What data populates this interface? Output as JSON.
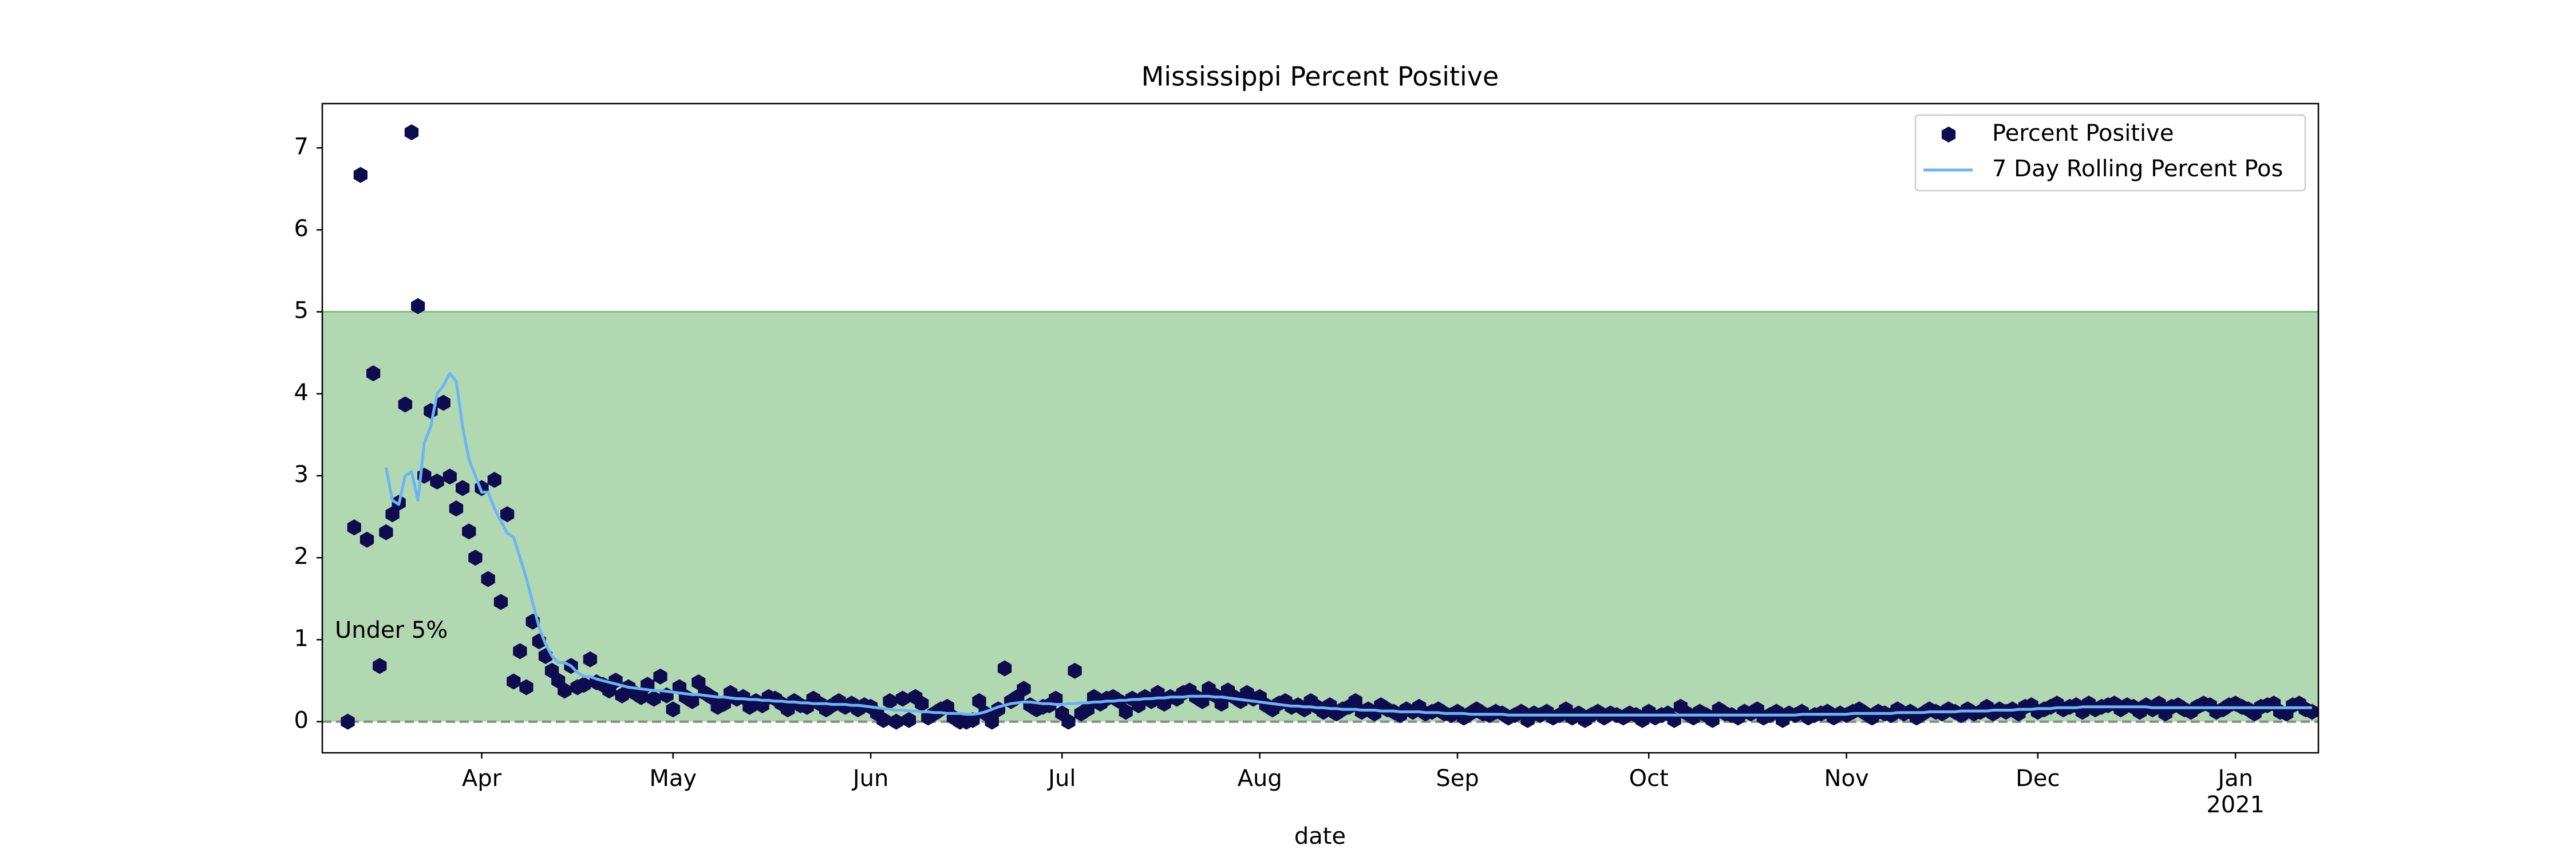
{
  "chart_data": {
    "type": "line",
    "title": "Mississippi Percent Positive",
    "x_label": "date",
    "threshold": 5,
    "threshold_label": "Under 5%",
    "threshold_color": "#b2d8b2",
    "zero_line": true,
    "legend": "upper right",
    "xlim": [
      66,
      379
    ],
    "ylim": [
      -0.38,
      7.54
    ],
    "yticks": [
      0,
      1,
      2,
      3,
      4,
      5,
      6,
      7
    ],
    "xticks": [
      {
        "value": 91,
        "label": "Apr"
      },
      {
        "value": 121,
        "label": "May"
      },
      {
        "value": 152,
        "label": "Jun"
      },
      {
        "value": 182,
        "label": "Jul"
      },
      {
        "value": 213,
        "label": "Aug"
      },
      {
        "value": 244,
        "label": "Sep"
      },
      {
        "value": 274,
        "label": "Oct"
      },
      {
        "value": 305,
        "label": "Nov"
      },
      {
        "value": 335,
        "label": "Dec"
      },
      {
        "value": 366,
        "label": "Jan\n2021"
      }
    ],
    "x": [
      70,
      71,
      72,
      73,
      74,
      75,
      76,
      77,
      78,
      79,
      80,
      81,
      82,
      83,
      84,
      85,
      86,
      87,
      88,
      89,
      90,
      91,
      92,
      93,
      94,
      95,
      96,
      97,
      98,
      99,
      100,
      101,
      102,
      103,
      104,
      105,
      106,
      107,
      108,
      109,
      110,
      111,
      112,
      113,
      114,
      115,
      116,
      117,
      118,
      119,
      120,
      121,
      122,
      123,
      124,
      125,
      126,
      127,
      128,
      129,
      130,
      131,
      132,
      133,
      134,
      135,
      136,
      137,
      138,
      139,
      140,
      141,
      142,
      143,
      144,
      145,
      146,
      147,
      148,
      149,
      150,
      151,
      152,
      153,
      154,
      155,
      156,
      157,
      158,
      159,
      160,
      161,
      162,
      163,
      164,
      165,
      166,
      167,
      168,
      169,
      170,
      171,
      172,
      173,
      174,
      175,
      176,
      177,
      178,
      179,
      180,
      181,
      182,
      183,
      184,
      185,
      186,
      187,
      188,
      189,
      190,
      191,
      192,
      193,
      194,
      195,
      196,
      197,
      198,
      199,
      200,
      201,
      202,
      203,
      204,
      205,
      206,
      207,
      208,
      209,
      210,
      211,
      212,
      213,
      214,
      215,
      216,
      217,
      218,
      219,
      220,
      221,
      222,
      223,
      224,
      225,
      226,
      227,
      228,
      229,
      230,
      231,
      232,
      233,
      234,
      235,
      236,
      237,
      238,
      239,
      240,
      241,
      242,
      243,
      244,
      245,
      246,
      247,
      248,
      249,
      250,
      251,
      252,
      253,
      254,
      255,
      256,
      257,
      258,
      259,
      260,
      261,
      262,
      263,
      264,
      265,
      266,
      267,
      268,
      269,
      270,
      271,
      272,
      273,
      274,
      275,
      276,
      277,
      278,
      279,
      280,
      281,
      282,
      283,
      284,
      285,
      286,
      287,
      288,
      289,
      290,
      291,
      292,
      293,
      294,
      295,
      296,
      297,
      298,
      299,
      300,
      301,
      302,
      303,
      304,
      305,
      306,
      307,
      308,
      309,
      310,
      311,
      312,
      313,
      314,
      315,
      316,
      317,
      318,
      319,
      320,
      321,
      322,
      323,
      324,
      325,
      326,
      327,
      328,
      329,
      330,
      331,
      332,
      333,
      334,
      335,
      336,
      337,
      338,
      339,
      340,
      341,
      342,
      343,
      344,
      345,
      346,
      347,
      348,
      349,
      350,
      351,
      352,
      353,
      354,
      355,
      356,
      357,
      358,
      359,
      360,
      361,
      362,
      363,
      364,
      365,
      366,
      367,
      368,
      369,
      370,
      371,
      372,
      373,
      374,
      375,
      376,
      377,
      378
    ],
    "series": [
      {
        "name": "Percent Positive",
        "type": "scatter",
        "color": "#0c0c4e",
        "values": [
          0,
          2.37,
          6.67,
          2.22,
          4.25,
          0.68,
          2.31,
          2.53,
          2.67,
          3.87,
          7.19,
          5.07,
          3.0,
          3.79,
          2.93,
          3.89,
          2.99,
          2.6,
          2.85,
          2.32,
          2.0,
          2.85,
          1.74,
          2.95,
          1.46,
          2.53,
          0.49,
          0.86,
          0.42,
          1.22,
          0.98,
          0.8,
          0.62,
          0.5,
          0.38,
          0.68,
          0.42,
          0.45,
          0.76,
          0.48,
          0.45,
          0.38,
          0.5,
          0.32,
          0.42,
          0.35,
          0.3,
          0.45,
          0.28,
          0.55,
          0.32,
          0.15,
          0.42,
          0.3,
          0.25,
          0.48,
          0.35,
          0.3,
          0.18,
          0.22,
          0.35,
          0.28,
          0.3,
          0.18,
          0.25,
          0.2,
          0.3,
          0.28,
          0.22,
          0.15,
          0.25,
          0.2,
          0.18,
          0.28,
          0.22,
          0.15,
          0.2,
          0.25,
          0.18,
          0.22,
          0.15,
          0.2,
          0.18,
          0.1,
          0.02,
          0.25,
          0.0,
          0.28,
          0.02,
          0.3,
          0.22,
          0.05,
          0.1,
          0.15,
          0.18,
          0.05,
          0.0,
          0.0,
          0.02,
          0.25,
          0.1,
          0.0,
          0.15,
          0.65,
          0.25,
          0.3,
          0.4,
          0.2,
          0.15,
          0.18,
          0.2,
          0.28,
          0.1,
          0.0,
          0.62,
          0.1,
          0.15,
          0.3,
          0.22,
          0.28,
          0.3,
          0.25,
          0.12,
          0.28,
          0.2,
          0.3,
          0.25,
          0.35,
          0.22,
          0.3,
          0.28,
          0.35,
          0.38,
          0.3,
          0.25,
          0.4,
          0.32,
          0.22,
          0.38,
          0.3,
          0.25,
          0.35,
          0.28,
          0.3,
          0.2,
          0.15,
          0.22,
          0.25,
          0.18,
          0.2,
          0.15,
          0.25,
          0.18,
          0.12,
          0.2,
          0.1,
          0.15,
          0.18,
          0.25,
          0.12,
          0.15,
          0.1,
          0.2,
          0.15,
          0.12,
          0.08,
          0.15,
          0.12,
          0.18,
          0.1,
          0.12,
          0.15,
          0.1,
          0.08,
          0.12,
          0.05,
          0.1,
          0.15,
          0.1,
          0.08,
          0.12,
          0.1,
          0.05,
          0.08,
          0.12,
          0.02,
          0.1,
          0.08,
          0.12,
          0.05,
          0.08,
          0.15,
          0.05,
          0.1,
          0.02,
          0.08,
          0.12,
          0.05,
          0.1,
          0.08,
          0.05,
          0.1,
          0.08,
          0.02,
          0.12,
          0.05,
          0.08,
          0.1,
          0.02,
          0.18,
          0.1,
          0.05,
          0.12,
          0.08,
          0.02,
          0.15,
          0.1,
          0.08,
          0.05,
          0.12,
          0.1,
          0.15,
          0.05,
          0.08,
          0.12,
          0.02,
          0.1,
          0.08,
          0.12,
          0.05,
          0.08,
          0.1,
          0.12,
          0.05,
          0.1,
          0.08,
          0.12,
          0.15,
          0.1,
          0.05,
          0.12,
          0.1,
          0.08,
          0.15,
          0.1,
          0.12,
          0.05,
          0.1,
          0.15,
          0.12,
          0.1,
          0.15,
          0.12,
          0.08,
          0.15,
          0.1,
          0.12,
          0.18,
          0.1,
          0.15,
          0.12,
          0.15,
          0.1,
          0.18,
          0.2,
          0.12,
          0.15,
          0.18,
          0.22,
          0.15,
          0.18,
          0.2,
          0.12,
          0.22,
          0.15,
          0.18,
          0.2,
          0.22,
          0.15,
          0.2,
          0.18,
          0.12,
          0.2,
          0.15,
          0.22,
          0.1,
          0.18,
          0.2,
          0.15,
          0.12,
          0.18,
          0.22,
          0.2,
          0.12,
          0.15,
          0.2,
          0.22,
          0.18,
          0.15,
          0.1,
          0.18,
          0.2,
          0.22,
          0.12,
          0.1,
          0.2,
          0.22,
          0.15,
          0.12
        ]
      },
      {
        "name": "7 Day Rolling Percent Pos",
        "type": "line",
        "color": "#6cb4f5",
        "values": [
          null,
          null,
          null,
          null,
          null,
          null,
          3.1,
          2.7,
          2.65,
          3.0,
          3.05,
          2.7,
          3.4,
          3.6,
          4.0,
          4.1,
          4.25,
          4.15,
          3.6,
          3.2,
          3.0,
          2.8,
          2.8,
          2.6,
          2.45,
          2.3,
          2.25,
          2.0,
          1.75,
          1.45,
          1.15,
          0.95,
          0.8,
          0.72,
          0.72,
          0.68,
          0.6,
          0.55,
          0.55,
          0.52,
          0.5,
          0.48,
          0.46,
          0.44,
          0.42,
          0.41,
          0.4,
          0.39,
          0.38,
          0.38,
          0.37,
          0.36,
          0.35,
          0.34,
          0.33,
          0.33,
          0.32,
          0.31,
          0.3,
          0.3,
          0.29,
          0.28,
          0.28,
          0.27,
          0.27,
          0.26,
          0.26,
          0.25,
          0.25,
          0.24,
          0.24,
          0.23,
          0.23,
          0.22,
          0.22,
          0.22,
          0.21,
          0.21,
          0.21,
          0.2,
          0.2,
          0.19,
          0.18,
          0.17,
          0.16,
          0.15,
          0.14,
          0.14,
          0.13,
          0.13,
          0.12,
          0.12,
          0.11,
          0.11,
          0.1,
          0.1,
          0.1,
          0.09,
          0.09,
          0.1,
          0.12,
          0.15,
          0.18,
          0.2,
          0.22,
          0.23,
          0.24,
          0.24,
          0.23,
          0.22,
          0.22,
          0.21,
          0.21,
          0.22,
          0.22,
          0.23,
          0.23,
          0.24,
          0.24,
          0.25,
          0.25,
          0.26,
          0.26,
          0.27,
          0.27,
          0.28,
          0.28,
          0.29,
          0.29,
          0.3,
          0.3,
          0.3,
          0.31,
          0.31,
          0.31,
          0.31,
          0.3,
          0.3,
          0.29,
          0.28,
          0.27,
          0.26,
          0.25,
          0.24,
          0.23,
          0.22,
          0.21,
          0.2,
          0.19,
          0.19,
          0.18,
          0.18,
          0.17,
          0.17,
          0.16,
          0.16,
          0.15,
          0.15,
          0.15,
          0.14,
          0.14,
          0.14,
          0.13,
          0.13,
          0.13,
          0.12,
          0.12,
          0.12,
          0.12,
          0.11,
          0.11,
          0.11,
          0.1,
          0.1,
          0.1,
          0.1,
          0.09,
          0.09,
          0.09,
          0.09,
          0.09,
          0.09,
          0.08,
          0.08,
          0.08,
          0.08,
          0.08,
          0.08,
          0.08,
          0.08,
          0.08,
          0.08,
          0.08,
          0.08,
          0.08,
          0.08,
          0.08,
          0.08,
          0.08,
          0.08,
          0.08,
          0.08,
          0.08,
          0.08,
          0.08,
          0.08,
          0.08,
          0.08,
          0.08,
          0.08,
          0.08,
          0.08,
          0.08,
          0.08,
          0.08,
          0.08,
          0.08,
          0.08,
          0.08,
          0.08,
          0.08,
          0.08,
          0.08,
          0.08,
          0.08,
          0.08,
          0.08,
          0.08,
          0.09,
          0.09,
          0.09,
          0.09,
          0.09,
          0.09,
          0.09,
          0.09,
          0.1,
          0.1,
          0.1,
          0.1,
          0.1,
          0.1,
          0.1,
          0.11,
          0.11,
          0.11,
          0.11,
          0.11,
          0.12,
          0.12,
          0.12,
          0.12,
          0.12,
          0.13,
          0.13,
          0.13,
          0.13,
          0.13,
          0.14,
          0.14,
          0.14,
          0.14,
          0.15,
          0.15,
          0.15,
          0.16,
          0.16,
          0.16,
          0.17,
          0.17,
          0.17,
          0.17,
          0.18,
          0.18,
          0.18,
          0.18,
          0.18,
          0.18,
          0.18,
          0.18,
          0.18,
          0.18,
          0.18,
          0.17,
          0.17,
          0.17,
          0.17,
          0.17,
          0.17,
          0.17,
          0.17,
          0.17,
          0.17,
          0.17,
          0.17,
          0.17,
          0.17,
          0.17,
          0.17,
          0.17,
          0.17,
          0.17,
          0.17,
          0.17,
          0.17,
          0.17,
          0.17,
          0.17,
          0.17
        ]
      }
    ]
  }
}
